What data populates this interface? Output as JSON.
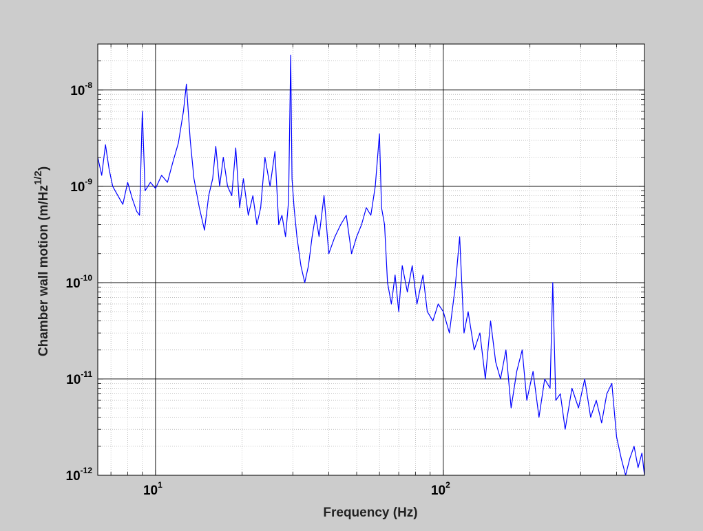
{
  "colors": {
    "background": "#cccccc",
    "plot_area": "#ffffff",
    "series": "#0000ff",
    "major_grid": "#000000",
    "minor_grid": "#9a9a9a",
    "frame": "#000000"
  },
  "chart_data": {
    "type": "line",
    "title": "",
    "xlabel": "Frequency (Hz)",
    "ylabel": {
      "base": "Chamber wall motion (m/Hz",
      "exponent": "1/2",
      "close": ")"
    },
    "xscale": "log",
    "yscale": "log",
    "xlim": [
      6.3,
      500
    ],
    "ylim": [
      1e-12,
      3e-08
    ],
    "grid": true,
    "minor_grid": true,
    "legend": "none",
    "xticks": [
      {
        "value": 10,
        "base": "10",
        "exp": "1"
      },
      {
        "value": 100,
        "base": "10",
        "exp": "2"
      }
    ],
    "yticks": [
      {
        "value": 1e-12,
        "base": "10",
        "exp": "-12"
      },
      {
        "value": 1e-11,
        "base": "10",
        "exp": "-11"
      },
      {
        "value": 1e-10,
        "base": "10",
        "exp": "-10"
      },
      {
        "value": 1e-09,
        "base": "10",
        "exp": "-9"
      },
      {
        "value": 1e-08,
        "base": "10",
        "exp": "-8"
      }
    ],
    "series": [
      {
        "color": "#0000ff",
        "points": [
          [
            6.3,
            2e-09
          ],
          [
            6.5,
            1.3e-09
          ],
          [
            6.7,
            2.7e-09
          ],
          [
            6.9,
            1.5e-09
          ],
          [
            7.1,
            1e-09
          ],
          [
            7.4,
            8e-10
          ],
          [
            7.7,
            6.5e-10
          ],
          [
            8.0,
            1.1e-09
          ],
          [
            8.3,
            7.5e-10
          ],
          [
            8.6,
            5.5e-10
          ],
          [
            8.8,
            5e-10
          ],
          [
            9.0,
            6e-09
          ],
          [
            9.2,
            9e-10
          ],
          [
            9.6,
            1.1e-09
          ],
          [
            10.0,
            9.5e-10
          ],
          [
            10.5,
            1.3e-09
          ],
          [
            11.0,
            1.1e-09
          ],
          [
            11.5,
            1.8e-09
          ],
          [
            12.0,
            2.8e-09
          ],
          [
            12.5,
            6e-09
          ],
          [
            12.8,
            1.15e-08
          ],
          [
            13.2,
            3e-09
          ],
          [
            13.6,
            1.2e-09
          ],
          [
            14.2,
            6e-10
          ],
          [
            14.8,
            3.5e-10
          ],
          [
            15.3,
            8e-10
          ],
          [
            15.8,
            1.2e-09
          ],
          [
            16.2,
            2.6e-09
          ],
          [
            16.7,
            1e-09
          ],
          [
            17.2,
            2e-09
          ],
          [
            17.8,
            1e-09
          ],
          [
            18.4,
            8e-10
          ],
          [
            19.0,
            2.5e-09
          ],
          [
            19.6,
            6e-10
          ],
          [
            20.2,
            1.2e-09
          ],
          [
            21.0,
            5e-10
          ],
          [
            21.8,
            8e-10
          ],
          [
            22.5,
            4e-10
          ],
          [
            23.2,
            6e-10
          ],
          [
            24.0,
            2e-09
          ],
          [
            25.0,
            1e-09
          ],
          [
            26.0,
            2.3e-09
          ],
          [
            26.8,
            4e-10
          ],
          [
            27.5,
            5e-10
          ],
          [
            28.3,
            3e-10
          ],
          [
            29.0,
            7e-10
          ],
          [
            29.5,
            2.3e-08
          ],
          [
            29.8,
            1.2e-09
          ],
          [
            30.3,
            6e-10
          ],
          [
            31.0,
            3e-10
          ],
          [
            32.0,
            1.5e-10
          ],
          [
            33.0,
            1e-10
          ],
          [
            34.0,
            1.5e-10
          ],
          [
            35.0,
            3e-10
          ],
          [
            36.0,
            5e-10
          ],
          [
            37.0,
            3e-10
          ],
          [
            38.5,
            8e-10
          ],
          [
            40.0,
            2e-10
          ],
          [
            42.0,
            3e-10
          ],
          [
            44.0,
            4e-10
          ],
          [
            46.0,
            5e-10
          ],
          [
            48.0,
            2e-10
          ],
          [
            50.0,
            3e-10
          ],
          [
            52.0,
            4e-10
          ],
          [
            54.0,
            6e-10
          ],
          [
            56.0,
            5e-10
          ],
          [
            58.0,
            1e-09
          ],
          [
            60.0,
            3.5e-09
          ],
          [
            61.0,
            6e-10
          ],
          [
            62.5,
            4e-10
          ],
          [
            64.0,
            1e-10
          ],
          [
            66.0,
            6e-11
          ],
          [
            68.0,
            1.2e-10
          ],
          [
            70.0,
            5e-11
          ],
          [
            72.0,
            1.5e-10
          ],
          [
            75.0,
            8e-11
          ],
          [
            78.0,
            1.5e-10
          ],
          [
            81.0,
            6e-11
          ],
          [
            85.0,
            1.2e-10
          ],
          [
            88.0,
            5e-11
          ],
          [
            92.0,
            4e-11
          ],
          [
            96.0,
            6e-11
          ],
          [
            100.0,
            5e-11
          ],
          [
            105.0,
            3e-11
          ],
          [
            110.0,
            9e-11
          ],
          [
            114.0,
            3e-10
          ],
          [
            118.0,
            3e-11
          ],
          [
            122.0,
            5e-11
          ],
          [
            128.0,
            2e-11
          ],
          [
            134.0,
            3e-11
          ],
          [
            140.0,
            1e-11
          ],
          [
            146.0,
            4e-11
          ],
          [
            152.0,
            1.5e-11
          ],
          [
            158.0,
            1e-11
          ],
          [
            165.0,
            2e-11
          ],
          [
            172.0,
            5e-12
          ],
          [
            180.0,
            1.2e-11
          ],
          [
            188.0,
            2e-11
          ],
          [
            195.0,
            6e-12
          ],
          [
            205.0,
            1.2e-11
          ],
          [
            215.0,
            4e-12
          ],
          [
            225.0,
            1e-11
          ],
          [
            235.0,
            8e-12
          ],
          [
            240.0,
            1e-10
          ],
          [
            246.0,
            6e-12
          ],
          [
            255.0,
            7e-12
          ],
          [
            265.0,
            3e-12
          ],
          [
            280.0,
            8e-12
          ],
          [
            295.0,
            5e-12
          ],
          [
            310.0,
            1e-11
          ],
          [
            325.0,
            4e-12
          ],
          [
            340.0,
            6e-12
          ],
          [
            355.0,
            3.5e-12
          ],
          [
            370.0,
            7e-12
          ],
          [
            385.0,
            9e-12
          ],
          [
            400.0,
            2.5e-12
          ],
          [
            415.0,
            1.5e-12
          ],
          [
            430.0,
            1e-12
          ],
          [
            445.0,
            1.5e-12
          ],
          [
            460.0,
            2e-12
          ],
          [
            475.0,
            1.2e-12
          ],
          [
            490.0,
            1.7e-12
          ],
          [
            500.0,
            1e-12
          ]
        ]
      }
    ]
  }
}
